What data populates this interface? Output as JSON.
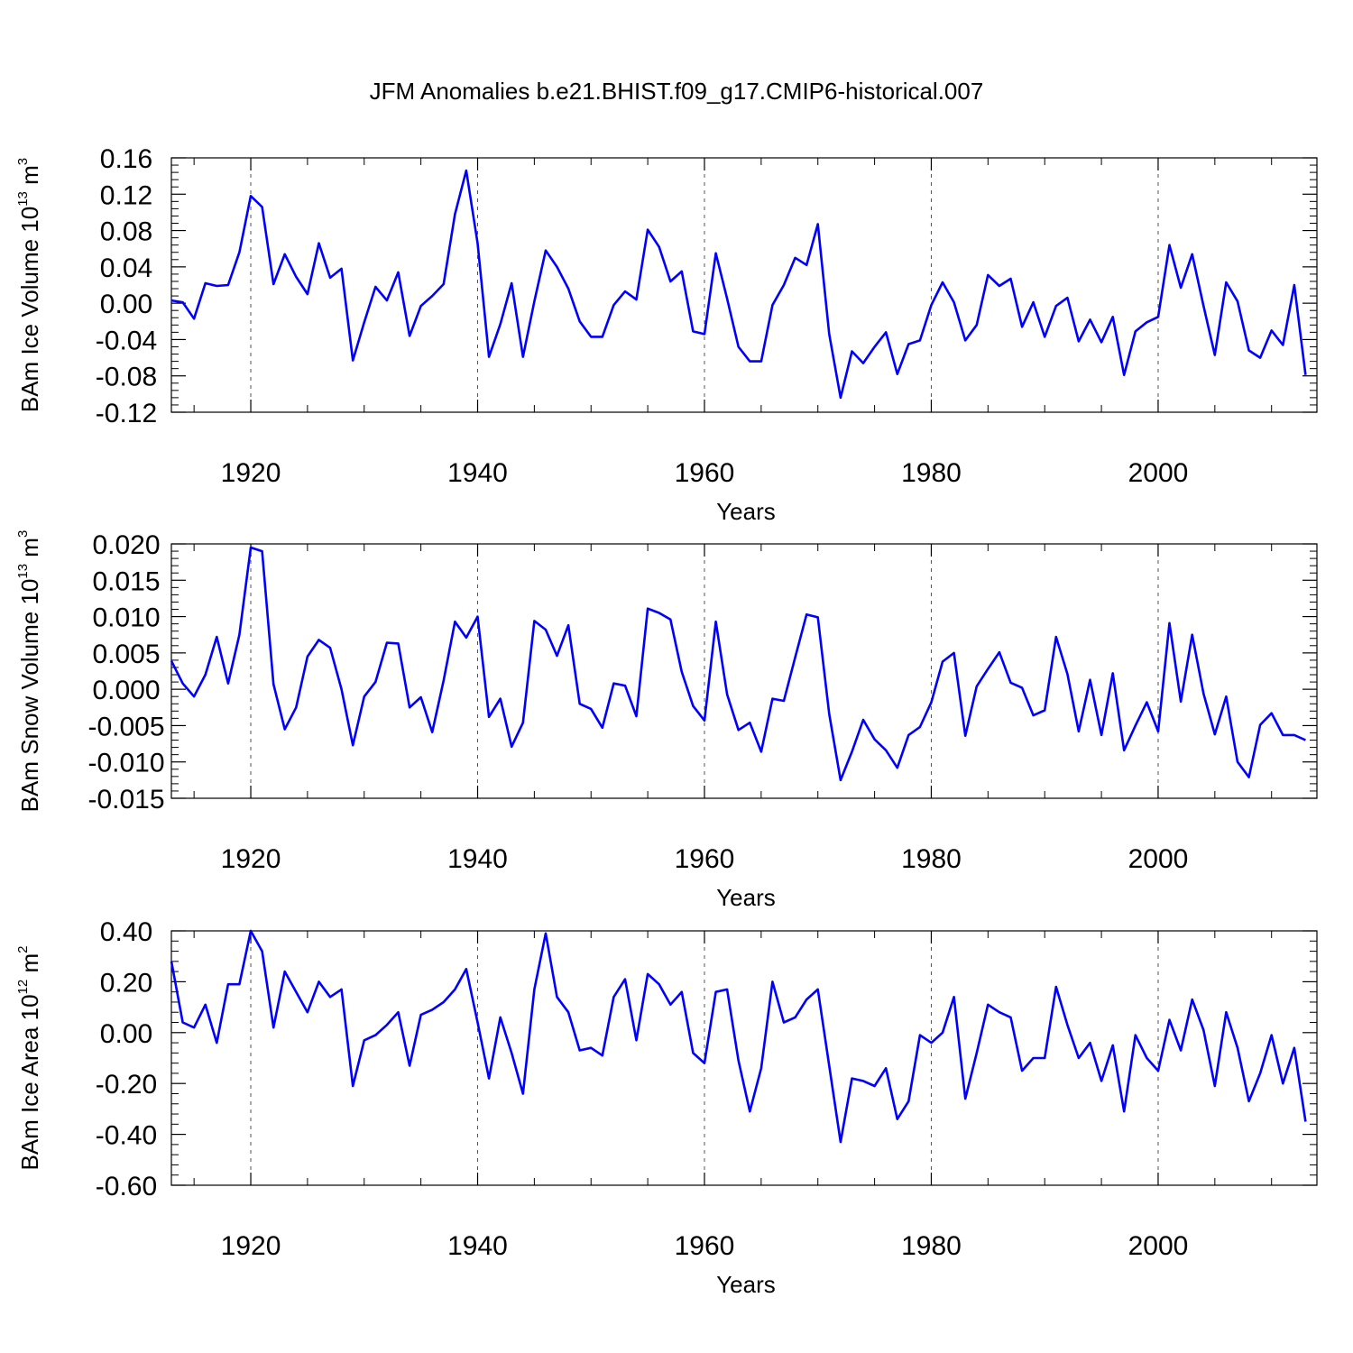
{
  "figure_title": "JFM Anomalies b.e21.BHIST.f09_g17.CMIP6-historical.007",
  "chart_data": [
    {
      "type": "line",
      "title": "JFM Anomalies b.e21.BHIST.f09_g17.CMIP6-historical.007",
      "xlabel": "Years",
      "ylabel": {
        "prefix": "BAm Ice Volume 10",
        "exp": "13",
        "unit": " m",
        "unit_exp": "3"
      },
      "xlim": [
        1913,
        2014
      ],
      "ylim": [
        -0.12,
        0.16
      ],
      "x_ticks": [
        1920,
        1940,
        1960,
        1980,
        2000
      ],
      "y_ticks": [
        -0.12,
        -0.08,
        -0.04,
        0.0,
        0.04,
        0.08,
        0.12,
        0.16
      ],
      "y_tick_labels": [
        "-0.12",
        "-0.08",
        "-0.04",
        "0.00",
        "0.04",
        "0.08",
        "0.12",
        "0.16"
      ],
      "grid": "vertical dashed at major x ticks",
      "series": [
        {
          "name": "BAm Ice Volume",
          "color": "#0000ff",
          "x_start": 1913,
          "values": [
            0.003,
            0.001,
            -0.017,
            0.022,
            0.019,
            0.02,
            0.056,
            0.118,
            0.106,
            0.021,
            0.054,
            0.029,
            0.01,
            0.066,
            0.028,
            0.038,
            -0.063,
            -0.021,
            0.018,
            0.003,
            0.034,
            -0.036,
            -0.003,
            0.008,
            0.021,
            0.098,
            0.146,
            0.066,
            -0.059,
            -0.023,
            0.022,
            -0.059,
            0.002,
            0.058,
            0.04,
            0.016,
            -0.02,
            -0.037,
            -0.037,
            -0.002,
            0.013,
            0.004,
            0.081,
            0.062,
            0.024,
            0.035,
            -0.031,
            -0.034,
            0.055,
            0.005,
            -0.048,
            -0.064,
            -0.064,
            -0.002,
            0.02,
            0.05,
            0.042,
            0.087,
            -0.034,
            -0.104,
            -0.053,
            -0.066,
            -0.048,
            -0.032,
            -0.078,
            -0.045,
            -0.041,
            -0.002,
            0.023,
            0.001,
            -0.041,
            -0.024,
            0.031,
            0.019,
            0.027,
            -0.026,
            0.001,
            -0.037,
            -0.003,
            0.006,
            -0.042,
            -0.018,
            -0.043,
            -0.015,
            -0.079,
            -0.031,
            -0.021,
            -0.015,
            0.064,
            0.017,
            0.054,
            -0.003,
            -0.057,
            0.023,
            0.002,
            -0.052,
            -0.06,
            -0.03,
            -0.046,
            0.02,
            -0.079
          ]
        }
      ]
    },
    {
      "type": "line",
      "xlabel": "Years",
      "ylabel": {
        "prefix": "BAm Snow Volume 10",
        "exp": "13",
        "unit": " m",
        "unit_exp": "3"
      },
      "xlim": [
        1913,
        2014
      ],
      "ylim": [
        -0.015,
        0.02
      ],
      "x_ticks": [
        1920,
        1940,
        1960,
        1980,
        2000
      ],
      "y_ticks": [
        -0.015,
        -0.01,
        -0.005,
        0.0,
        0.005,
        0.01,
        0.015,
        0.02
      ],
      "y_tick_labels": [
        "-0.015",
        "-0.010",
        "-0.005",
        "0.000",
        "0.005",
        "0.010",
        "0.015",
        "0.020"
      ],
      "grid": "vertical dashed at major x ticks",
      "series": [
        {
          "name": "BAm Snow Volume",
          "color": "#0000ff",
          "x_start": 1913,
          "values": [
            0.0039,
            0.0008,
            -0.001,
            0.002,
            0.0072,
            0.0008,
            0.0075,
            0.0195,
            0.019,
            0.0007,
            -0.0055,
            -0.0025,
            0.0045,
            0.0068,
            0.0057,
            0.0,
            -0.0077,
            -0.001,
            0.001,
            0.0064,
            0.0063,
            -0.0025,
            -0.0011,
            -0.0059,
            0.0012,
            0.0093,
            0.0071,
            0.01,
            -0.0038,
            -0.0013,
            -0.0079,
            -0.0046,
            0.0094,
            0.0082,
            0.0046,
            0.0088,
            -0.002,
            -0.0027,
            -0.0053,
            0.0008,
            0.0005,
            -0.0037,
            0.0111,
            0.0105,
            0.0096,
            0.0024,
            -0.0023,
            -0.0043,
            0.0093,
            -0.0007,
            -0.0056,
            -0.0046,
            -0.0086,
            -0.0013,
            -0.0016,
            0.0044,
            0.0103,
            0.0099,
            -0.0034,
            -0.0125,
            -0.0086,
            -0.0042,
            -0.0069,
            -0.0084,
            -0.0108,
            -0.0063,
            -0.0052,
            -0.0018,
            0.0038,
            0.005,
            -0.0064,
            0.0004,
            0.0028,
            0.0051,
            0.0009,
            0.0002,
            -0.0036,
            -0.0029,
            0.0072,
            0.0021,
            -0.0058,
            0.0013,
            -0.0063,
            0.0022,
            -0.0084,
            -0.005,
            -0.0018,
            -0.0058,
            0.0091,
            -0.0017,
            0.0075,
            -0.0006,
            -0.0062,
            -0.001,
            -0.01,
            -0.0121,
            -0.0049,
            -0.0033,
            -0.0063,
            -0.0063,
            -0.007
          ]
        }
      ]
    },
    {
      "type": "line",
      "xlabel": "Years",
      "ylabel": {
        "prefix": "BAm Ice Area 10",
        "exp": "12",
        "unit": " m",
        "unit_exp": "2"
      },
      "xlim": [
        1913,
        2014
      ],
      "ylim": [
        -0.6,
        0.4
      ],
      "x_ticks": [
        1920,
        1940,
        1960,
        1980,
        2000
      ],
      "y_ticks": [
        -0.6,
        -0.4,
        -0.2,
        0.0,
        0.2,
        0.4
      ],
      "y_tick_labels": [
        "-0.60",
        "-0.40",
        "-0.20",
        "0.00",
        "0.20",
        "0.40"
      ],
      "grid": "vertical dashed at major x ticks",
      "series": [
        {
          "name": "BAm Ice Area",
          "color": "#0000ff",
          "x_start": 1913,
          "values": [
            0.28,
            0.04,
            0.02,
            0.11,
            -0.04,
            0.19,
            0.19,
            0.4,
            0.32,
            0.02,
            0.24,
            0.16,
            0.08,
            0.2,
            0.14,
            0.17,
            -0.21,
            -0.03,
            -0.01,
            0.03,
            0.08,
            -0.13,
            0.07,
            0.09,
            0.12,
            0.17,
            0.25,
            0.04,
            -0.18,
            0.06,
            -0.08,
            -0.24,
            0.17,
            0.39,
            0.14,
            0.08,
            -0.07,
            -0.06,
            -0.09,
            0.14,
            0.21,
            -0.03,
            0.23,
            0.19,
            0.11,
            0.16,
            -0.08,
            -0.12,
            0.16,
            0.17,
            -0.11,
            -0.31,
            -0.14,
            0.2,
            0.04,
            0.06,
            0.13,
            0.17,
            -0.13,
            -0.43,
            -0.18,
            -0.19,
            -0.21,
            -0.14,
            -0.34,
            -0.27,
            -0.01,
            -0.04,
            0.0,
            0.14,
            -0.26,
            -0.08,
            0.11,
            0.08,
            0.06,
            -0.15,
            -0.1,
            -0.1,
            0.18,
            0.03,
            -0.1,
            -0.04,
            -0.19,
            -0.05,
            -0.31,
            -0.01,
            -0.1,
            -0.15,
            0.05,
            -0.07,
            0.13,
            0.01,
            -0.21,
            0.08,
            -0.06,
            -0.27,
            -0.16,
            -0.01,
            -0.2,
            -0.06,
            -0.35
          ]
        }
      ]
    }
  ]
}
